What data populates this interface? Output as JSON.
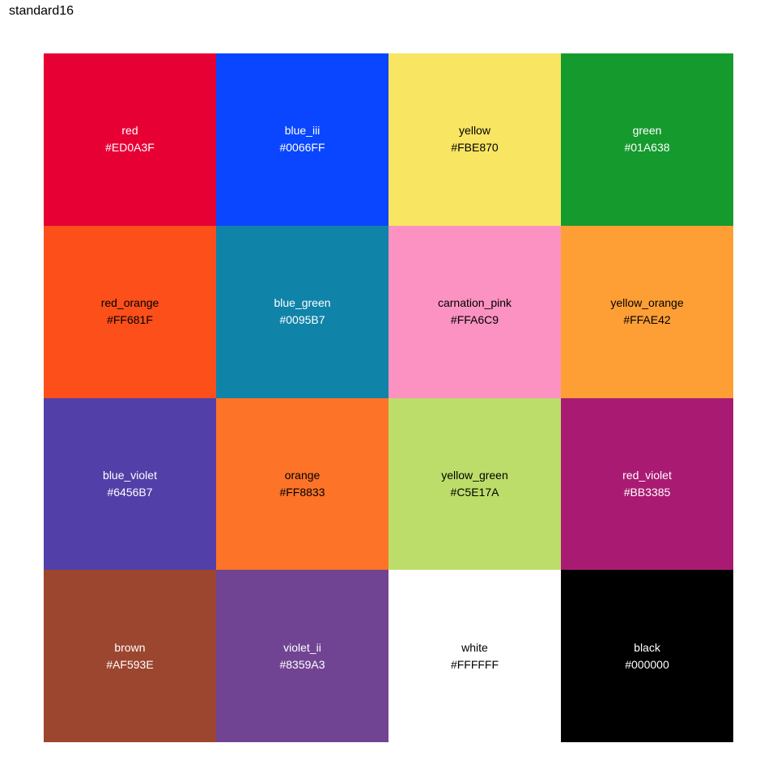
{
  "title": "standard16",
  "chart_data": {
    "type": "heatmap",
    "title": "standard16",
    "grid": false,
    "tiles": [
      {
        "name": "red",
        "hex": "#ED0A3F",
        "fill": "#E60034",
        "text_color": "#FFFFFF"
      },
      {
        "name": "blue_iii",
        "hex": "#0066FF",
        "fill": "#0A46FF",
        "text_color": "#FFFFFF"
      },
      {
        "name": "yellow",
        "hex": "#FBE870",
        "fill": "#F8E562",
        "text_color": "#000000"
      },
      {
        "name": "green",
        "hex": "#01A638",
        "fill": "#159A2D",
        "text_color": "#FFFFFF"
      },
      {
        "name": "red_orange",
        "hex": "#FF681F",
        "fill": "#FC4F1A",
        "text_color": "#000000"
      },
      {
        "name": "blue_green",
        "hex": "#0095B7",
        "fill": "#1083A8",
        "text_color": "#FFFFFF"
      },
      {
        "name": "carnation_pink",
        "hex": "#FFA6C9",
        "fill": "#FB92C1",
        "text_color": "#000000"
      },
      {
        "name": "yellow_orange",
        "hex": "#FFAE42",
        "fill": "#FE9F36",
        "text_color": "#000000"
      },
      {
        "name": "blue_violet",
        "hex": "#6456B7",
        "fill": "#5240A8",
        "text_color": "#FFFFFF"
      },
      {
        "name": "orange",
        "hex": "#FF8833",
        "fill": "#FD7327",
        "text_color": "#000000"
      },
      {
        "name": "yellow_green",
        "hex": "#C5E17A",
        "fill": "#BDDD6A",
        "text_color": "#000000"
      },
      {
        "name": "red_violet",
        "hex": "#BB3385",
        "fill": "#A91B72",
        "text_color": "#FFFFFF"
      },
      {
        "name": "brown",
        "hex": "#AF593E",
        "fill": "#9C452F",
        "text_color": "#FFFFFF"
      },
      {
        "name": "violet_ii",
        "hex": "#8359A3",
        "fill": "#714493",
        "text_color": "#FFFFFF"
      },
      {
        "name": "white",
        "hex": "#FFFFFF",
        "fill": "#FFFFFF",
        "text_color": "#000000"
      },
      {
        "name": "black",
        "hex": "#000000",
        "fill": "#000000",
        "text_color": "#FFFFFF"
      }
    ]
  }
}
